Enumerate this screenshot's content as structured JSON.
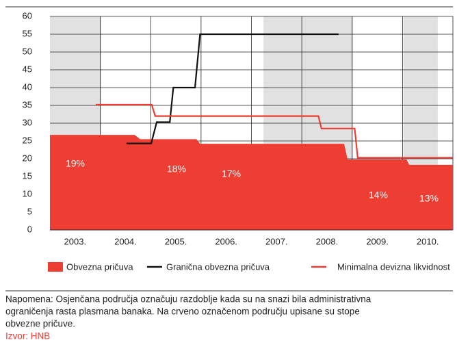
{
  "chart_data": {
    "type": "line",
    "xlim": [
      2003,
      2011
    ],
    "ylim": [
      0,
      60
    ],
    "yticks": [
      0,
      5,
      10,
      15,
      20,
      25,
      30,
      35,
      40,
      45,
      50,
      55,
      60
    ],
    "xticks": [
      {
        "value": 2003.5,
        "label": "2003."
      },
      {
        "value": 2004.5,
        "label": "2004."
      },
      {
        "value": 2005.5,
        "label": "2005."
      },
      {
        "value": 2006.5,
        "label": "2006."
      },
      {
        "value": 2007.5,
        "label": "2007."
      },
      {
        "value": 2008.5,
        "label": "2008."
      },
      {
        "value": 2009.5,
        "label": "2009."
      },
      {
        "value": 2010.5,
        "label": "2010."
      }
    ],
    "xgrid": [
      2004,
      2005,
      2006,
      2007,
      2008,
      2009,
      2010,
      2011
    ],
    "grid": true,
    "shaded_regions": [
      [
        2003,
        2004.02
      ],
      [
        2007.24,
        2009.02
      ],
      [
        2010.02,
        2010.7
      ]
    ],
    "shade_color": "#e1e1e1",
    "series": [
      {
        "name": "Obvezna pričuva",
        "type": "area",
        "color": "#ee3d33",
        "x": [
          2003,
          2004.68,
          2004.79,
          2005.91,
          2005.98,
          2008.84,
          2008.91,
          2010.08,
          2010.13,
          2011
        ],
        "values": [
          26.7,
          26.7,
          25.5,
          25.5,
          24.2,
          24.2,
          19.8,
          19.8,
          18.3,
          18.3
        ]
      },
      {
        "name": "Granična obvezna pričuva",
        "type": "line",
        "color": "#111111",
        "x": [
          2004.52,
          2005.01,
          2005.12,
          2005.38,
          2005.45,
          2005.88,
          2005.98,
          2008.73
        ],
        "values": [
          24.3,
          24.3,
          30.3,
          30.3,
          40,
          40,
          55,
          55
        ]
      },
      {
        "name": "Minimalna devizna likvidnost",
        "type": "line",
        "color": "#ee3d33",
        "x": [
          2003.91,
          2005.02,
          2005.09,
          2008.33,
          2008.39,
          2009.05,
          2009.11,
          2011
        ],
        "values": [
          35.2,
          35.2,
          32,
          32,
          28.5,
          28.5,
          20.3,
          20.3
        ]
      }
    ],
    "annotations": [
      "19%",
      "18%",
      "17%",
      "14%",
      "13%"
    ]
  },
  "note": [
    "Napomena: Osjenčana područja označuju razdoblje kada su na snazi bila administrativna",
    "ograničenja rasta plasmana banaka. Na crveno označenom području upisane su stope",
    "obvezne pričuve."
  ],
  "source": "Izvor: HNB"
}
